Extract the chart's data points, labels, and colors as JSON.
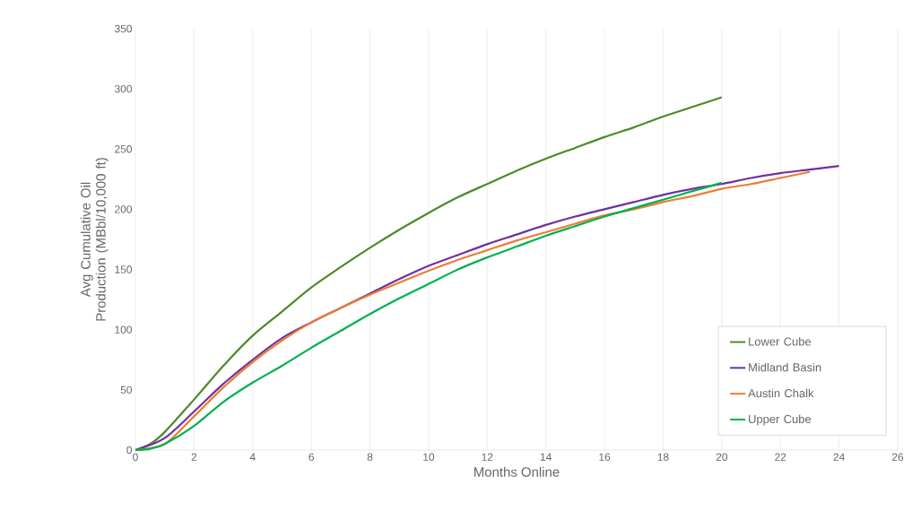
{
  "chart_data": {
    "type": "line",
    "xlabel": "Months Online",
    "ylabel": "Avg Cumulative Oil Production (MBbl/10,000 ft)",
    "xlim": [
      0,
      26
    ],
    "xticks": [
      0,
      2,
      4,
      6,
      8,
      10,
      12,
      14,
      16,
      18,
      20,
      22,
      24,
      26
    ],
    "ylim": [
      0,
      350
    ],
    "yticks": [
      0,
      50,
      100,
      150,
      200,
      250,
      300,
      350
    ],
    "grid": "x",
    "legend": "bottom right",
    "marker": "none",
    "line_style": "solid",
    "series": [
      {
        "name": "Lower Cube",
        "color": "#4e8a2a",
        "x": [
          0,
          0.5,
          1,
          2,
          3,
          4,
          5,
          6,
          7,
          8,
          9,
          10,
          11,
          12,
          13,
          14,
          15,
          16,
          17,
          18,
          19,
          20
        ],
        "values": [
          0,
          5,
          15,
          42,
          70,
          95,
          115,
          135,
          152,
          168,
          183,
          197,
          210,
          221,
          232,
          242,
          251,
          260,
          268,
          277,
          285,
          293
        ]
      },
      {
        "name": "Midland Basin",
        "color": "#7030a0",
        "x": [
          0,
          1,
          2,
          3,
          4,
          5,
          6,
          7,
          8,
          9,
          10,
          11,
          12,
          13,
          14,
          15,
          16,
          17,
          18,
          19,
          20,
          21,
          22,
          23,
          24
        ],
        "values": [
          0,
          10,
          32,
          55,
          75,
          93,
          106,
          118,
          130,
          142,
          153,
          162,
          171,
          179,
          187,
          194,
          200,
          206,
          212,
          217,
          221,
          226,
          230,
          233,
          236
        ]
      },
      {
        "name": "Austin Chalk",
        "color": "#ed7d31",
        "x": [
          0,
          1,
          2,
          3,
          4,
          5,
          6,
          7,
          8,
          9,
          10,
          11,
          12,
          13,
          14,
          15,
          16,
          17,
          18,
          19,
          20,
          21,
          22,
          23
        ],
        "values": [
          0,
          5,
          28,
          52,
          73,
          91,
          106,
          118,
          129,
          139,
          149,
          158,
          166,
          174,
          181,
          188,
          195,
          200,
          206,
          211,
          217,
          221,
          226,
          231
        ]
      },
      {
        "name": "Upper Cube",
        "color": "#00b050",
        "x": [
          0,
          0.5,
          1,
          2,
          3,
          4,
          5,
          6,
          7,
          8,
          9,
          10,
          11,
          12,
          13,
          14,
          15,
          16,
          17,
          18,
          19,
          20
        ],
        "values": [
          0,
          1,
          5,
          20,
          40,
          56,
          70,
          85,
          99,
          113,
          126,
          138,
          150,
          160,
          169,
          178,
          186,
          194,
          201,
          208,
          215,
          222
        ]
      }
    ]
  }
}
